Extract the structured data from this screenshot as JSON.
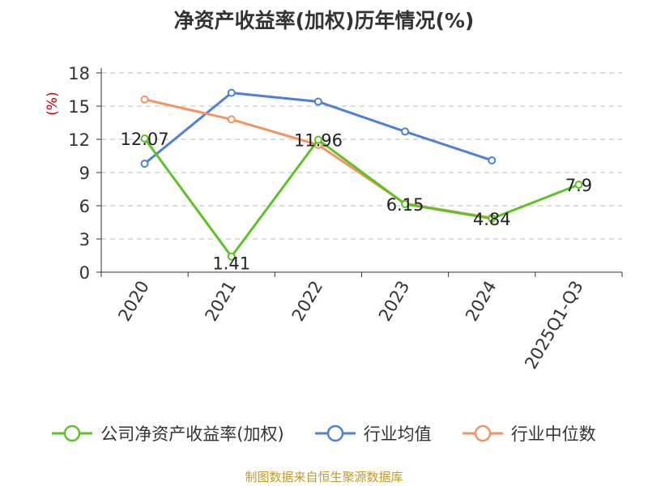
{
  "colors": {
    "company": "#5ec226",
    "industry_avg": "#4e7fdb",
    "industry_median": "#f49361",
    "ylabel": "#cc0000",
    "source": "#c19a2a",
    "axis": "#333333",
    "grid": "#bbbbbb"
  },
  "source_text": "制图数据来自恒生聚源数据库",
  "chart_data": {
    "type": "line",
    "title": "净资产收益率(加权)历年情况(%)",
    "ylabel": "(%)",
    "xlabel": "",
    "categories": [
      "2020",
      "2021",
      "2022",
      "2023",
      "2024",
      "2025Q1-Q3"
    ],
    "ylim": [
      0,
      18
    ],
    "yticks": [
      "0",
      "3",
      "6",
      "9",
      "12",
      "15",
      "18"
    ],
    "grid": "horizontal-dashed",
    "legend_position": "bottom",
    "series": [
      {
        "name": "公司净资产收益率(加权)",
        "values": [
          12.07,
          1.41,
          11.96,
          6.15,
          4.84,
          7.9
        ],
        "labels": [
          "12.07",
          "1.41",
          "11.96",
          "6.15",
          "4.84",
          "7.9"
        ]
      },
      {
        "name": "行业均值",
        "values": [
          9.8,
          16.2,
          15.4,
          12.7,
          10.1,
          null
        ]
      },
      {
        "name": "行业中位数",
        "values": [
          15.6,
          13.8,
          11.5,
          6.2,
          4.9,
          null
        ]
      }
    ]
  }
}
